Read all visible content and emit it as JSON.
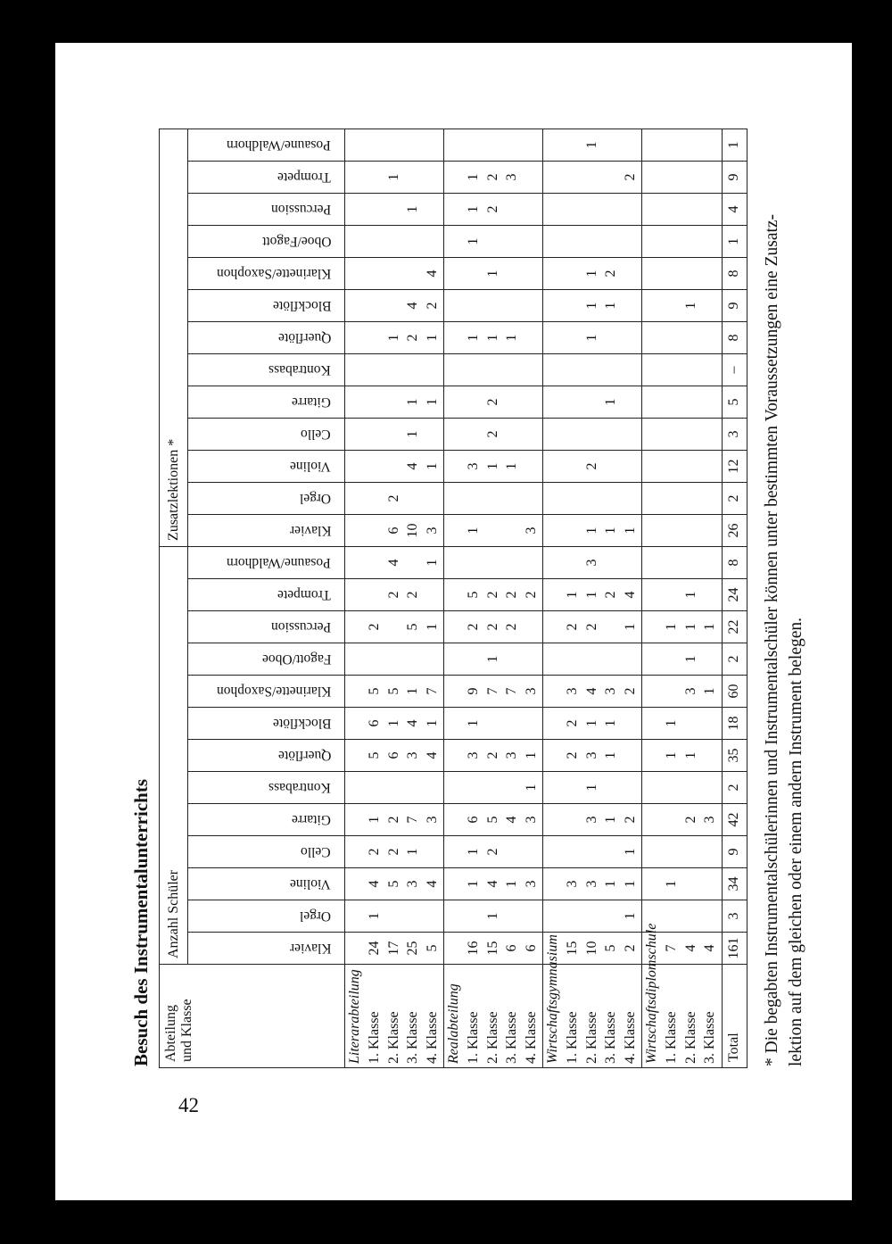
{
  "page_number": "42",
  "title": "Besuch des Instrumentalunterrichts",
  "table": {
    "corner_header": [
      "Abteilung",
      "und Klasse"
    ],
    "group_headers": {
      "anzahl": "Anzahl Schüler",
      "zusatz": "Zusatzlektionen *"
    },
    "anzahl_columns": [
      "Klavier",
      "Orgel",
      "Violine",
      "Cello",
      "Gitarre",
      "Kontrabass",
      "Querflöte",
      "Blockflöte",
      "Klarinette/Saxophon",
      "Fagott/Oboe",
      "Percussion",
      "Trompete",
      "Posaune/Waldhorn"
    ],
    "zusatz_columns": [
      "Klavier",
      "Orgel",
      "Violine",
      "Cello",
      "Gitarre",
      "Kontrabass",
      "Querflöte",
      "Blockflöte",
      "Klarinette/Saxophon",
      "Oboe/Fagott",
      "Percussion",
      "Trompete",
      "Posaune/Waldhorn"
    ],
    "sections": [
      {
        "name": "Literarabteilung",
        "rows": [
          {
            "class": "1. Klasse",
            "anzahl": [
              "24",
              "1",
              "4",
              "2",
              "1",
              "",
              "5",
              "6",
              "5",
              "",
              "2",
              "",
              ""
            ],
            "zusatz": [
              "",
              "",
              "",
              "",
              "",
              "",
              "",
              "",
              "",
              "",
              "",
              "",
              ""
            ]
          },
          {
            "class": "2. Klasse",
            "anzahl": [
              "17",
              "",
              "5",
              "2",
              "2",
              "",
              "6",
              "1",
              "5",
              "",
              "",
              "2",
              "4"
            ],
            "zusatz": [
              "6",
              "2",
              "",
              "",
              "",
              "",
              "1",
              "",
              "",
              "",
              "",
              "1",
              ""
            ]
          },
          {
            "class": "3. Klasse",
            "anzahl": [
              "25",
              "",
              "3",
              "1",
              "7",
              "",
              "3",
              "4",
              "1",
              "",
              "5",
              "2",
              ""
            ],
            "zusatz": [
              "10",
              "",
              "4",
              "1",
              "1",
              "",
              "2",
              "4",
              "",
              "",
              "1",
              "",
              ""
            ]
          },
          {
            "class": "4. Klasse",
            "anzahl": [
              "5",
              "",
              "4",
              "",
              "3",
              "",
              "4",
              "1",
              "7",
              "",
              "1",
              "",
              "1"
            ],
            "zusatz": [
              "3",
              "",
              "1",
              "",
              "1",
              "",
              "1",
              "2",
              "4",
              "",
              "",
              "",
              ""
            ]
          }
        ]
      },
      {
        "name": "Realabteilung",
        "rows": [
          {
            "class": "1. Klasse",
            "anzahl": [
              "16",
              "",
              "1",
              "1",
              "6",
              "",
              "3",
              "1",
              "9",
              "",
              "2",
              "5",
              ""
            ],
            "zusatz": [
              "1",
              "",
              "3",
              "",
              "",
              "",
              "1",
              "",
              "",
              "1",
              "1",
              "1",
              ""
            ]
          },
          {
            "class": "2. Klasse",
            "anzahl": [
              "15",
              "1",
              "4",
              "2",
              "5",
              "",
              "2",
              "",
              "7",
              "1",
              "2",
              "2",
              ""
            ],
            "zusatz": [
              "",
              "",
              "1",
              "2",
              "2",
              "",
              "1",
              "",
              "1",
              "",
              "2",
              "2",
              ""
            ]
          },
          {
            "class": "3. Klasse",
            "anzahl": [
              "6",
              "",
              "1",
              "",
              "4",
              "",
              "3",
              "",
              "7",
              "",
              "2",
              "2",
              ""
            ],
            "zusatz": [
              "",
              "",
              "1",
              "",
              "",
              "",
              "1",
              "",
              "",
              "",
              "",
              "3",
              ""
            ]
          },
          {
            "class": "4. Klasse",
            "anzahl": [
              "6",
              "",
              "3",
              "",
              "3",
              "1",
              "1",
              "",
              "3",
              "",
              "",
              "2",
              ""
            ],
            "zusatz": [
              "3",
              "",
              "",
              "",
              "",
              "",
              "",
              "",
              "",
              "",
              "",
              "",
              ""
            ]
          }
        ]
      },
      {
        "name": "Wirtschaftsgymnasium",
        "rows": [
          {
            "class": "1. Klasse",
            "anzahl": [
              "15",
              "",
              "3",
              "",
              "",
              "",
              "2",
              "2",
              "3",
              "",
              "2",
              "1",
              ""
            ],
            "zusatz": [
              "",
              "",
              "",
              "",
              "",
              "",
              "",
              "",
              "",
              "",
              "",
              "",
              ""
            ]
          },
          {
            "class": "2. Klasse",
            "anzahl": [
              "10",
              "",
              "3",
              "",
              "3",
              "1",
              "3",
              "1",
              "4",
              "",
              "2",
              "1",
              "3"
            ],
            "zusatz": [
              "1",
              "",
              "2",
              "",
              "",
              "",
              "1",
              "1",
              "1",
              "",
              "",
              "",
              "1"
            ]
          },
          {
            "class": "3. Klasse",
            "anzahl": [
              "5",
              "",
              "1",
              "",
              "1",
              "",
              "1",
              "1",
              "3",
              "",
              "",
              "2",
              ""
            ],
            "zusatz": [
              "1",
              "",
              "",
              "",
              "1",
              "",
              "",
              "1",
              "2",
              "",
              "",
              "",
              ""
            ]
          },
          {
            "class": "4. Klasse",
            "anzahl": [
              "2",
              "1",
              "1",
              "1",
              "2",
              "",
              "",
              "",
              "2",
              "",
              "1",
              "4",
              ""
            ],
            "zusatz": [
              "1",
              "",
              "",
              "",
              "",
              "",
              "",
              "",
              "",
              "",
              "",
              "2",
              ""
            ]
          }
        ]
      },
      {
        "name": "Wirtschaftsdiplomschule",
        "rows": [
          {
            "class": "1. Klasse",
            "anzahl": [
              "7",
              "",
              "1",
              "",
              "",
              "",
              "1",
              "1",
              "",
              "",
              "1",
              "",
              ""
            ],
            "zusatz": [
              "",
              "",
              "",
              "",
              "",
              "",
              "",
              "",
              "",
              "",
              "",
              "",
              ""
            ]
          },
          {
            "class": "2. Klasse",
            "anzahl": [
              "4",
              "",
              "",
              "",
              "2",
              "",
              "1",
              "",
              "3",
              "1",
              "1",
              "1",
              ""
            ],
            "zusatz": [
              "",
              "",
              "",
              "",
              "",
              "",
              "",
              "1",
              "",
              "",
              "",
              "",
              ""
            ]
          },
          {
            "class": "3. Klasse",
            "anzahl": [
              "4",
              "",
              "",
              "",
              "3",
              "",
              "",
              "",
              "1",
              "",
              "1",
              "",
              ""
            ],
            "zusatz": [
              "",
              "",
              "",
              "",
              "",
              "",
              "",
              "",
              "",
              "",
              "",
              "",
              ""
            ]
          }
        ]
      }
    ],
    "total": {
      "label": "Total",
      "anzahl": [
        "161",
        "3",
        "34",
        "9",
        "42",
        "2",
        "35",
        "18",
        "60",
        "2",
        "22",
        "24",
        "8"
      ],
      "zusatz": [
        "26",
        "2",
        "12",
        "3",
        "5",
        "–",
        "8",
        "9",
        "8",
        "1",
        "4",
        "9",
        "1"
      ]
    }
  },
  "footnote": [
    "* Die begabten Instrumentalschülerinnen und Instrumentalschüler können unter bestimmten Voraussetzungen eine Zusatz-",
    "lektion auf dem gleichen oder einem andern Instrument belegen."
  ]
}
